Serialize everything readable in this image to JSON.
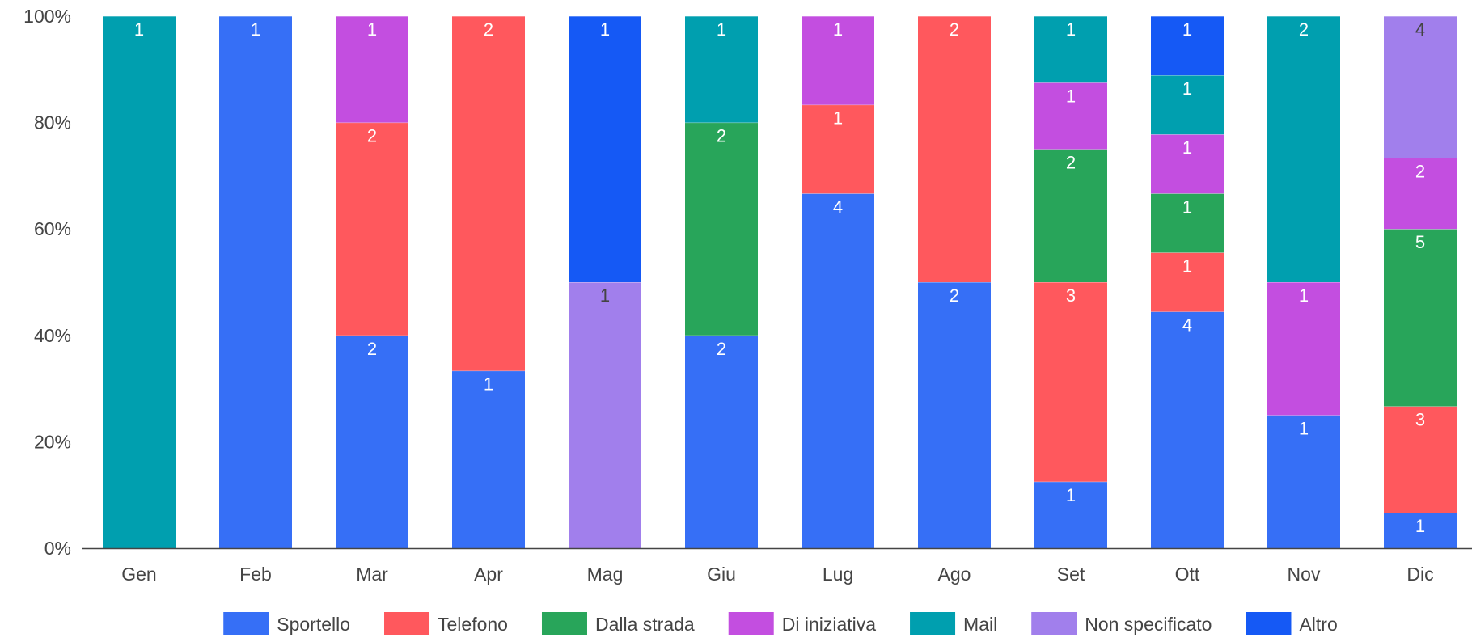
{
  "chart_data": {
    "type": "bar",
    "stacked": "percent",
    "categories": [
      "Gen",
      "Feb",
      "Mar",
      "Apr",
      "Mag",
      "Giu",
      "Lug",
      "Ago",
      "Set",
      "Ott",
      "Nov",
      "Dic"
    ],
    "y_ticks": [
      "0%",
      "20%",
      "40%",
      "60%",
      "80%",
      "100%"
    ],
    "ylim": [
      0,
      100
    ],
    "grid": false,
    "legend_position": "bottom",
    "series": [
      {
        "name": "Sportello",
        "color": "#366ff6",
        "label_color": "#ffffff",
        "values": [
          0,
          1,
          2,
          1,
          0,
          2,
          4,
          2,
          1,
          4,
          1,
          1
        ]
      },
      {
        "name": "Telefono",
        "color": "#ff585d",
        "label_color": "#ffffff",
        "values": [
          0,
          0,
          2,
          2,
          0,
          0,
          1,
          2,
          3,
          1,
          0,
          3
        ]
      },
      {
        "name": "Dalla strada",
        "color": "#28a55a",
        "label_color": "#ffffff",
        "values": [
          0,
          0,
          0,
          0,
          0,
          2,
          0,
          0,
          2,
          1,
          0,
          5
        ]
      },
      {
        "name": "Di iniziativa",
        "color": "#c34ee0",
        "label_color": "#ffffff",
        "values": [
          0,
          0,
          1,
          0,
          0,
          0,
          1,
          0,
          1,
          1,
          1,
          2
        ]
      },
      {
        "name": "Mail",
        "color": "#009faf",
        "label_color": "#ffffff",
        "values": [
          1,
          0,
          0,
          0,
          0,
          1,
          0,
          0,
          1,
          1,
          2,
          0
        ]
      },
      {
        "name": "Non specificato",
        "color": "#a17fec",
        "label_color": "#444444",
        "values": [
          0,
          0,
          0,
          0,
          1,
          0,
          0,
          0,
          0,
          0,
          0,
          4
        ]
      },
      {
        "name": "Altro",
        "color": "#1559f5",
        "label_color": "#ffffff",
        "values": [
          0,
          0,
          0,
          0,
          1,
          0,
          0,
          0,
          0,
          1,
          0,
          0
        ]
      }
    ]
  }
}
